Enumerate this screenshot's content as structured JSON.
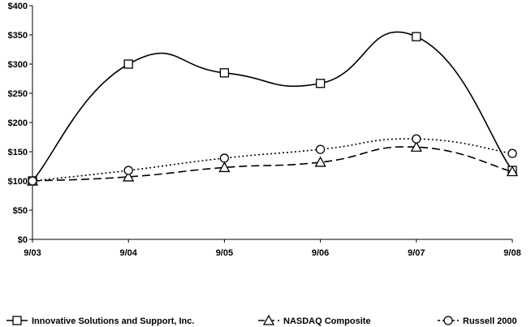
{
  "chart_data": {
    "type": "line",
    "title": "",
    "xlabel": "",
    "ylabel": "",
    "categories": [
      "9/03",
      "9/04",
      "9/05",
      "9/06",
      "9/07",
      "9/08"
    ],
    "y_ticks": [
      "$0",
      "$50",
      "$100",
      "$150",
      "$200",
      "$250",
      "$300",
      "$350",
      "$400"
    ],
    "ylim": [
      0,
      400
    ],
    "grid": false,
    "legend_position": "bottom",
    "series": [
      {
        "name": "Innovative Solutions and Support, Inc.",
        "marker": "square",
        "line_style": "solid",
        "color": "#000000",
        "values": [
          100,
          300,
          285,
          267,
          347,
          118
        ]
      },
      {
        "name": "NASDAQ Composite",
        "marker": "triangle",
        "line_style": "dashed",
        "color": "#000000",
        "values": [
          100,
          107,
          123,
          132,
          158,
          116
        ]
      },
      {
        "name": "Russell 2000",
        "marker": "circle",
        "line_style": "dotted",
        "color": "#000000",
        "values": [
          100,
          118,
          139,
          154,
          172,
          147
        ]
      }
    ]
  }
}
